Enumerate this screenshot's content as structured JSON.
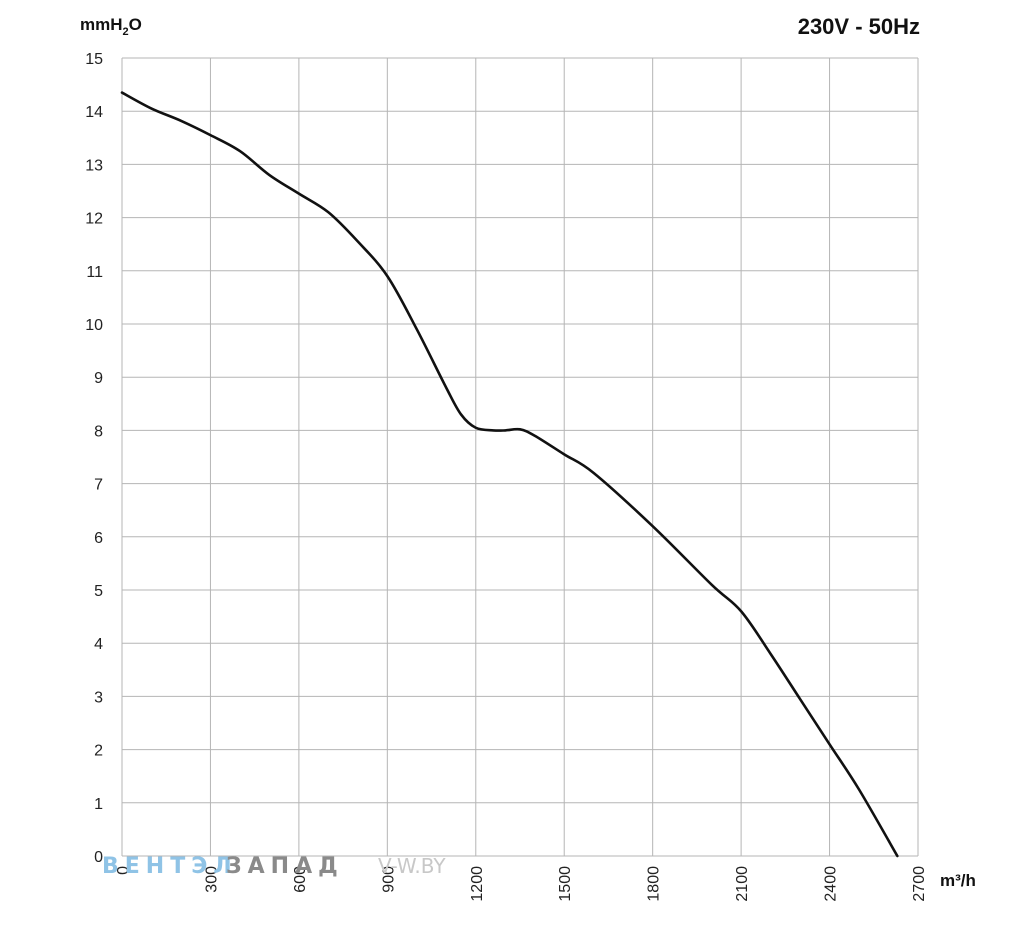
{
  "chart_data": {
    "type": "line",
    "title": "230V - 50Hz",
    "ylabel_main": "mmH",
    "ylabel_sub": "2",
    "ylabel_tail": "O",
    "xlabel": "m³/h",
    "xlim": [
      0,
      2700
    ],
    "ylim": [
      0,
      15
    ],
    "xticks": [
      0,
      300,
      600,
      900,
      1200,
      1500,
      1800,
      2100,
      2400,
      2700
    ],
    "yticks": [
      0,
      1,
      2,
      3,
      4,
      5,
      6,
      7,
      8,
      9,
      10,
      11,
      12,
      13,
      14,
      15
    ],
    "grid": true,
    "series": [
      {
        "color": "#111111",
        "x": [
          0,
          100,
          200,
          300,
          400,
          500,
          600,
          700,
          800,
          900,
          1000,
          1100,
          1150,
          1200,
          1260,
          1300,
          1350,
          1400,
          1500,
          1600,
          1800,
          2000,
          2100,
          2200,
          2300,
          2400,
          2500,
          2630
        ],
        "y": [
          14.35,
          14.05,
          13.82,
          13.55,
          13.25,
          12.8,
          12.45,
          12.1,
          11.55,
          10.9,
          9.9,
          8.8,
          8.3,
          8.05,
          8.0,
          8.0,
          8.02,
          7.9,
          7.55,
          7.2,
          6.2,
          5.1,
          4.6,
          3.8,
          2.95,
          2.1,
          1.25,
          0.0
        ]
      }
    ]
  },
  "watermark": {
    "part1": "ВЕНТЭЛ",
    "part2": "ЗАПАД",
    "part3": "V-W.BY"
  }
}
